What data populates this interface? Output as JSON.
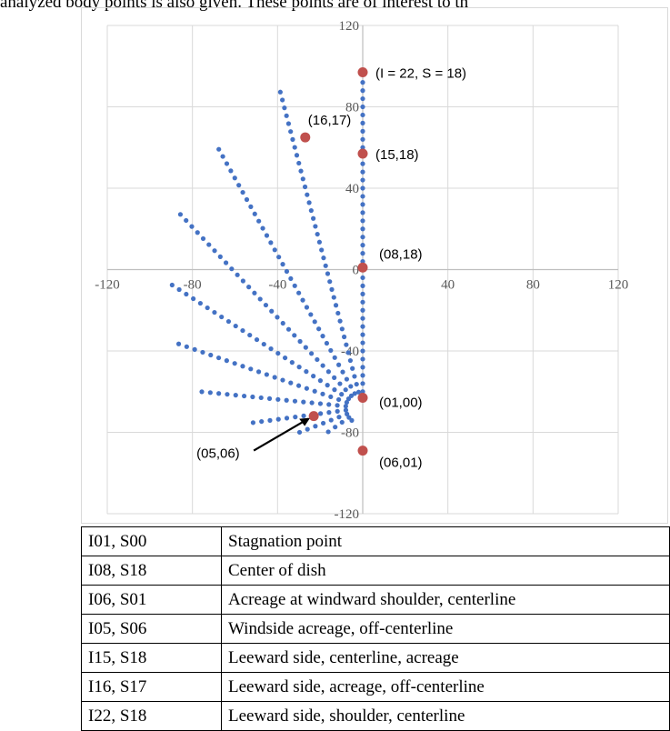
{
  "caption": "analyzed body points is also given. These points are of interest to th",
  "colors": {
    "series": "#4472c4",
    "highlight": "#c0504d",
    "grid": "#d9d9d9"
  },
  "chart_data": {
    "type": "scatter",
    "xlim": [
      -120,
      120
    ],
    "ylim": [
      -120,
      120
    ],
    "x_ticks": [
      -120,
      -80,
      -40,
      0,
      40,
      80,
      120
    ],
    "y_ticks": [
      120,
      80,
      40,
      0,
      -40,
      -80,
      -120
    ],
    "grid": true,
    "series": [
      {
        "rays": [
          {
            "angle": 90,
            "end": 98
          },
          {
            "angle": 104,
            "end": 96
          },
          {
            "angle": 118,
            "end": 92
          },
          {
            "angle": 132,
            "end": 90
          },
          {
            "angle": 146,
            "end": 92
          },
          {
            "angle": 160,
            "end": 96
          },
          {
            "angle": 174,
            "end": 98
          },
          {
            "angle": 188,
            "end": 92
          },
          {
            "angle": 202,
            "end": 88
          },
          {
            "angle": 216,
            "end": 82
          },
          {
            "angle": 230,
            "end": 75
          },
          {
            "angle": 244,
            "end": 68
          },
          {
            "angle": 258,
            "end": 60
          },
          {
            "angle": 270,
            "end": 54
          }
        ],
        "center": [
          0,
          -68
        ],
        "step": 4
      },
      {
        "points": [
          {
            "x": 0,
            "y": 97,
            "label": "(I = 22, S = 18)"
          },
          {
            "x": -27,
            "y": 65,
            "label": "(16,17)"
          },
          {
            "x": 0,
            "y": 57,
            "label": "(15,18)"
          },
          {
            "x": 0,
            "y": 1,
            "label": "(08,18)"
          },
          {
            "x": 0,
            "y": -63,
            "label": "(01,00)"
          },
          {
            "x": -23,
            "y": -72,
            "label": "(05,06)"
          },
          {
            "x": 0,
            "y": -89,
            "label": "(06,01)"
          }
        ]
      }
    ]
  },
  "legend_rows": [
    {
      "code": "I01, S00",
      "desc": "Stagnation point"
    },
    {
      "code": "I08, S18",
      "desc": "Center of dish"
    },
    {
      "code": "I06, S01",
      "desc": "Acreage at windward shoulder, centerline"
    },
    {
      "code": "I05, S06",
      "desc": "Windside acreage, off-centerline"
    },
    {
      "code": "I15, S18",
      "desc": "Leeward side, centerline, acreage"
    },
    {
      "code": "I16, S17",
      "desc": "Leeward side, acreage, off-centerline"
    },
    {
      "code": "I22, S18",
      "desc": "Leeward side, shoulder, centerline"
    }
  ]
}
